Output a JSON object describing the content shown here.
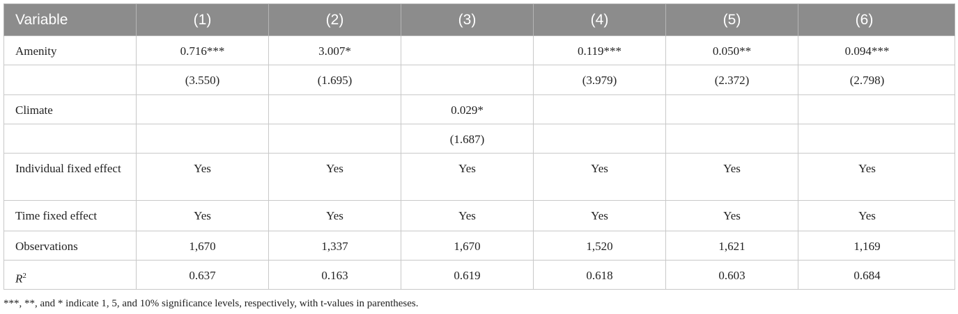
{
  "table": {
    "header": [
      "Variable",
      "(1)",
      "(2)",
      "(3)",
      "(4)",
      "(5)",
      "(6)"
    ],
    "rows": [
      [
        "Amenity",
        "0.716***",
        "3.007*",
        null,
        "0.119***",
        "0.050**",
        "0.094***"
      ],
      [
        null,
        "(3.550)",
        "(1.695)",
        null,
        "(3.979)",
        "(2.372)",
        "(2.798)"
      ],
      [
        "Climate",
        null,
        null,
        "0.029*",
        null,
        null,
        null
      ],
      [
        null,
        null,
        null,
        "(1.687)",
        null,
        null,
        null
      ],
      [
        "Individual fixed effect",
        "Yes",
        "Yes",
        "Yes",
        "Yes",
        "Yes",
        "Yes"
      ],
      [
        "Time fixed effect",
        "Yes",
        "Yes",
        "Yes",
        "Yes",
        "Yes",
        "Yes"
      ],
      [
        "Observations",
        "1,670",
        "1,337",
        "1,670",
        "1,520",
        "1,621",
        "1,169"
      ],
      [
        {
          "symbol": "R",
          "sup": "2"
        },
        "0.637",
        "0.163",
        "0.619",
        "0.618",
        "0.603",
        "0.684"
      ]
    ]
  },
  "footnote": "***, **, and * indicate 1, 5, and 10% significance levels, respectively, with t-values in parentheses."
}
